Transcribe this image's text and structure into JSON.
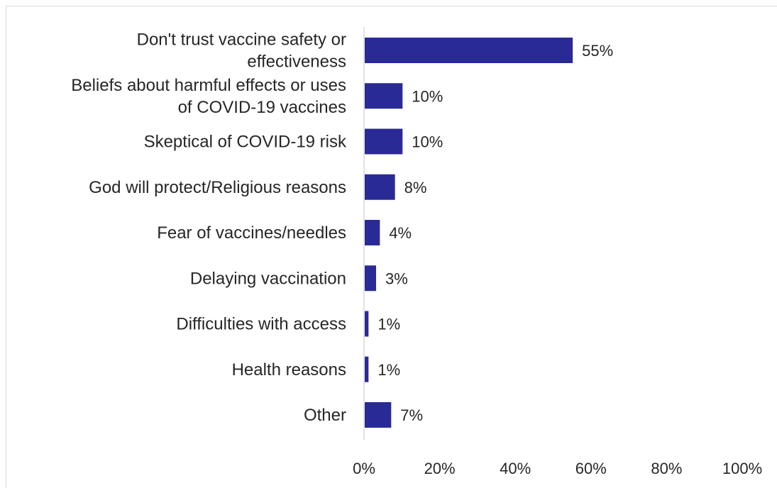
{
  "chart_data": {
    "type": "bar",
    "orientation": "horizontal",
    "categories": [
      "Don't trust vaccine safety or effectiveness",
      "Beliefs about harmful effects or uses of COVID-19 vaccines",
      "Skeptical of COVID-19 risk",
      "God will protect/Religious reasons",
      "Fear of vaccines/needles",
      "Delaying vaccination",
      "Difficulties with access",
      "Health reasons",
      "Other"
    ],
    "category_label_lines": [
      [
        "Don't trust vaccine safety or",
        "effectiveness"
      ],
      [
        "Beliefs about harmful effects or uses",
        "of COVID-19 vaccines"
      ],
      [
        "Skeptical of COVID-19 risk"
      ],
      [
        "God will protect/Religious reasons"
      ],
      [
        "Fear of vaccines/needles"
      ],
      [
        "Delaying vaccination"
      ],
      [
        "Difficulties with access"
      ],
      [
        "Health reasons"
      ],
      [
        "Other"
      ]
    ],
    "values": [
      55,
      10,
      10,
      8,
      4,
      3,
      1,
      1,
      7
    ],
    "data_labels": [
      "55%",
      "10%",
      "10%",
      "8%",
      "4%",
      "3%",
      "1%",
      "1%",
      "7%"
    ],
    "xlim": [
      0,
      100
    ],
    "x_ticks": [
      0,
      20,
      40,
      60,
      80,
      100
    ],
    "x_tick_labels": [
      "0%",
      "20%",
      "40%",
      "60%",
      "80%",
      "100%"
    ],
    "title": "",
    "xlabel": "",
    "ylabel": "",
    "grid": false,
    "legend": "none",
    "bar_color": "#2a2a96",
    "axis_color": "#d9d9d9",
    "text_color": "#262626"
  }
}
